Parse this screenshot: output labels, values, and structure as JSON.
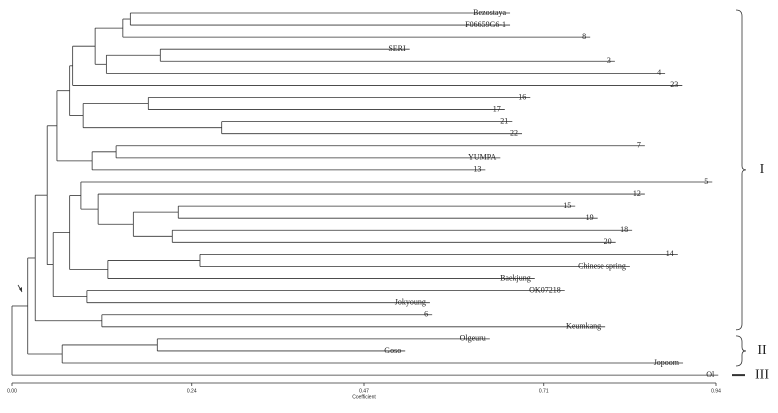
{
  "chart_data": {
    "type": "dendrogram",
    "x_label": "Coefficient",
    "xlim": [
      0,
      0.94
    ],
    "xticks": [
      {
        "value": 0,
        "label": "0.00"
      },
      {
        "value": 0.24,
        "label": "0.24"
      },
      {
        "value": 0.47,
        "label": "0.47"
      },
      {
        "value": 0.71,
        "label": "0.71"
      },
      {
        "value": 0.94,
        "label": "0.94"
      }
    ],
    "groups": [
      {
        "label": "I"
      },
      {
        "label": "II"
      },
      {
        "label": "III"
      }
    ],
    "tree": {
      "x": 0,
      "children": [
        {
          "x": 0.021,
          "children": [
            {
              "x": 0.031,
              "children": [
                {
                  "x": 0.047,
                  "children": [
                    {
                      "x": 0.06,
                      "children": [
                        {
                          "x": 0.077,
                          "children": [
                            {
                              "x": 0.081,
                              "children": [
                                {
                                  "x": 0.111,
                                  "children": [
                                    {
                                      "x": 0.148,
                                      "children": [
                                        {
                                          "x": 0.158,
                                          "children": [
                                            {
                                              "label": "Bezostaya",
                                              "x": 0.665
                                            },
                                            {
                                              "label": "F06659G6-1",
                                              "x": 0.665
                                            }
                                          ]
                                        },
                                        {
                                          "label": "8",
                                          "x": 0.772
                                        }
                                      ]
                                    },
                                    {
                                      "x": 0.126,
                                      "children": [
                                        {
                                          "x": 0.198,
                                          "children": [
                                            {
                                              "label": "SERI",
                                              "x": 0.531
                                            },
                                            {
                                              "label": "3",
                                              "x": 0.805
                                            }
                                          ]
                                        },
                                        {
                                          "label": "4",
                                          "x": 0.872
                                        }
                                      ]
                                    }
                                  ]
                                },
                                {
                                  "label": "23",
                                  "x": 0.895
                                }
                              ]
                            },
                            {
                              "x": 0.095,
                              "children": [
                                {
                                  "x": 0.182,
                                  "children": [
                                    {
                                      "label": "16",
                                      "x": 0.692
                                    },
                                    {
                                      "label": "17",
                                      "x": 0.658
                                    }
                                  ]
                                },
                                {
                                  "x": 0.28,
                                  "children": [
                                    {
                                      "label": "21",
                                      "x": 0.668
                                    },
                                    {
                                      "label": "22",
                                      "x": 0.681
                                    }
                                  ]
                                }
                              ]
                            }
                          ]
                        },
                        {
                          "x": 0.107,
                          "children": [
                            {
                              "x": 0.139,
                              "children": [
                                {
                                  "label": "7",
                                  "x": 0.845
                                },
                                {
                                  "label": "YUMPA",
                                  "x": 0.652
                                }
                              ]
                            },
                            {
                              "label": "13",
                              "x": 0.632
                            }
                          ]
                        }
                      ]
                    },
                    {
                      "x": 0.055,
                      "children": [
                        {
                          "x": 0.077,
                          "children": [
                            {
                              "x": 0.092,
                              "children": [
                                {
                                  "label": "5",
                                  "x": 0.935
                                },
                                {
                                  "x": 0.115,
                                  "children": [
                                    {
                                      "label": "12",
                                      "x": 0.845
                                    },
                                    {
                                      "x": 0.162,
                                      "children": [
                                        {
                                          "x": 0.222,
                                          "children": [
                                            {
                                              "label": "15",
                                              "x": 0.752
                                            },
                                            {
                                              "label": "19",
                                              "x": 0.782
                                            }
                                          ]
                                        },
                                        {
                                          "x": 0.214,
                                          "children": [
                                            {
                                              "label": "18",
                                              "x": 0.828
                                            },
                                            {
                                              "label": "20",
                                              "x": 0.806
                                            }
                                          ]
                                        }
                                      ]
                                    }
                                  ]
                                }
                              ]
                            },
                            {
                              "x": 0.128,
                              "children": [
                                {
                                  "x": 0.251,
                                  "children": [
                                    {
                                      "label": "14",
                                      "x": 0.889
                                    },
                                    {
                                      "label": "Chinese spring",
                                      "x": 0.825
                                    }
                                  ]
                                },
                                {
                                  "label": "Baekjung",
                                  "x": 0.698
                                }
                              ]
                            }
                          ]
                        },
                        {
                          "x": 0.1,
                          "children": [
                            {
                              "label": "OK07218",
                              "x": 0.738
                            },
                            {
                              "label": "Jokyoung",
                              "x": 0.558
                            }
                          ]
                        }
                      ]
                    }
                  ]
                },
                {
                  "x": 0.12,
                  "children": [
                    {
                      "label": "6",
                      "x": 0.561
                    },
                    {
                      "label": "Keumkang",
                      "x": 0.792
                    }
                  ]
                }
              ]
            },
            {
              "x": 0.067,
              "children": [
                {
                  "x": 0.194,
                  "children": [
                    {
                      "label": "Olgeuru",
                      "x": 0.638
                    },
                    {
                      "label": "Goso",
                      "x": 0.525
                    }
                  ]
                },
                {
                  "label": "Jopoom",
                  "x": 0.896
                }
              ]
            }
          ]
        },
        {
          "label": "Ol",
          "x": 0.943
        }
      ]
    }
  }
}
